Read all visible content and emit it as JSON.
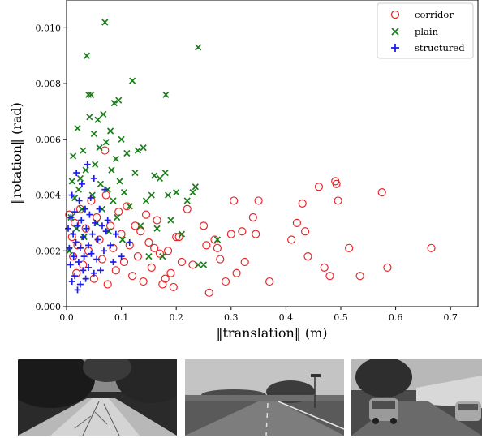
{
  "chart_data": {
    "type": "scatter",
    "title": "",
    "xlabel": "‖translation‖ (m)",
    "ylabel": "‖rotation‖ (rad)",
    "xlim": [
      0,
      0.75
    ],
    "ylim": [
      0,
      0.011
    ],
    "x_ticks": [
      "0.0",
      "0.1",
      "0.2",
      "0.3",
      "0.4",
      "0.5",
      "0.6",
      "0.7"
    ],
    "y_ticks": [
      "0.000",
      "0.002",
      "0.004",
      "0.006",
      "0.008",
      "0.010"
    ],
    "legend_position": "top-right",
    "grid": false,
    "series": [
      {
        "name": "corridor",
        "marker": "circle",
        "color": "#e8272a",
        "points": [
          [
            0.005,
            0.0033
          ],
          [
            0.01,
            0.0025
          ],
          [
            0.012,
            0.0018
          ],
          [
            0.015,
            0.003
          ],
          [
            0.018,
            0.0012
          ],
          [
            0.02,
            0.0022
          ],
          [
            0.025,
            0.0035
          ],
          [
            0.03,
            0.0015
          ],
          [
            0.035,
            0.0028
          ],
          [
            0.04,
            0.002
          ],
          [
            0.045,
            0.0038
          ],
          [
            0.05,
            0.001
          ],
          [
            0.055,
            0.0032
          ],
          [
            0.06,
            0.0024
          ],
          [
            0.065,
            0.0017
          ],
          [
            0.07,
            0.0056
          ],
          [
            0.072,
            0.004
          ],
          [
            0.075,
            0.0008
          ],
          [
            0.08,
            0.0029
          ],
          [
            0.085,
            0.0021
          ],
          [
            0.09,
            0.0013
          ],
          [
            0.095,
            0.0034
          ],
          [
            0.1,
            0.0026
          ],
          [
            0.105,
            0.0016
          ],
          [
            0.11,
            0.0036
          ],
          [
            0.115,
            0.0022
          ],
          [
            0.12,
            0.0011
          ],
          [
            0.125,
            0.0029
          ],
          [
            0.13,
            0.0018
          ],
          [
            0.135,
            0.0027
          ],
          [
            0.14,
            0.0009
          ],
          [
            0.145,
            0.0033
          ],
          [
            0.15,
            0.0023
          ],
          [
            0.155,
            0.0014
          ],
          [
            0.16,
            0.0021
          ],
          [
            0.165,
            0.0031
          ],
          [
            0.17,
            0.0019
          ],
          [
            0.175,
            0.0008
          ],
          [
            0.18,
            0.001
          ],
          [
            0.185,
            0.002
          ],
          [
            0.19,
            0.0012
          ],
          [
            0.195,
            0.0007
          ],
          [
            0.2,
            0.0025
          ],
          [
            0.205,
            0.0025
          ],
          [
            0.21,
            0.0016
          ],
          [
            0.22,
            0.0035
          ],
          [
            0.23,
            0.0015
          ],
          [
            0.25,
            0.0029
          ],
          [
            0.255,
            0.0022
          ],
          [
            0.26,
            0.0005
          ],
          [
            0.27,
            0.0024
          ],
          [
            0.275,
            0.0021
          ],
          [
            0.28,
            0.0017
          ],
          [
            0.29,
            0.0009
          ],
          [
            0.3,
            0.0026
          ],
          [
            0.305,
            0.0038
          ],
          [
            0.31,
            0.0012
          ],
          [
            0.32,
            0.0027
          ],
          [
            0.325,
            0.0016
          ],
          [
            0.34,
            0.0032
          ],
          [
            0.345,
            0.0026
          ],
          [
            0.35,
            0.0038
          ],
          [
            0.37,
            0.0009
          ],
          [
            0.41,
            0.0024
          ],
          [
            0.42,
            0.003
          ],
          [
            0.43,
            0.0037
          ],
          [
            0.435,
            0.0027
          ],
          [
            0.44,
            0.0018
          ],
          [
            0.46,
            0.0043
          ],
          [
            0.47,
            0.0014
          ],
          [
            0.48,
            0.0011
          ],
          [
            0.49,
            0.0045
          ],
          [
            0.492,
            0.0044
          ],
          [
            0.495,
            0.0038
          ],
          [
            0.515,
            0.0021
          ],
          [
            0.535,
            0.0011
          ],
          [
            0.575,
            0.0041
          ],
          [
            0.585,
            0.0014
          ],
          [
            0.665,
            0.0021
          ]
        ]
      },
      {
        "name": "plain",
        "marker": "x",
        "color": "#1a7f1a",
        "points": [
          [
            0.005,
            0.002
          ],
          [
            0.008,
            0.0032
          ],
          [
            0.01,
            0.0045
          ],
          [
            0.012,
            0.0054
          ],
          [
            0.015,
            0.0039
          ],
          [
            0.018,
            0.0028
          ],
          [
            0.02,
            0.0064
          ],
          [
            0.022,
            0.0042
          ],
          [
            0.025,
            0.0046
          ],
          [
            0.028,
            0.0035
          ],
          [
            0.03,
            0.0056
          ],
          [
            0.032,
            0.0025
          ],
          [
            0.035,
            0.0049
          ],
          [
            0.037,
            0.009
          ],
          [
            0.04,
            0.0076
          ],
          [
            0.042,
            0.0068
          ],
          [
            0.045,
            0.0076
          ],
          [
            0.047,
            0.004
          ],
          [
            0.05,
            0.0062
          ],
          [
            0.052,
            0.0051
          ],
          [
            0.055,
            0.003
          ],
          [
            0.057,
            0.0067
          ],
          [
            0.06,
            0.0057
          ],
          [
            0.062,
            0.0044
          ],
          [
            0.065,
            0.0035
          ],
          [
            0.067,
            0.0069
          ],
          [
            0.07,
            0.0102
          ],
          [
            0.072,
            0.0059
          ],
          [
            0.075,
            0.0042
          ],
          [
            0.077,
            0.0027
          ],
          [
            0.08,
            0.0063
          ],
          [
            0.082,
            0.0049
          ],
          [
            0.085,
            0.0038
          ],
          [
            0.087,
            0.0073
          ],
          [
            0.09,
            0.0053
          ],
          [
            0.092,
            0.0032
          ],
          [
            0.095,
            0.0074
          ],
          [
            0.097,
            0.0045
          ],
          [
            0.1,
            0.006
          ],
          [
            0.102,
            0.0024
          ],
          [
            0.105,
            0.0041
          ],
          [
            0.11,
            0.0055
          ],
          [
            0.115,
            0.0036
          ],
          [
            0.12,
            0.0081
          ],
          [
            0.125,
            0.0048
          ],
          [
            0.13,
            0.0056
          ],
          [
            0.135,
            0.0029
          ],
          [
            0.14,
            0.0057
          ],
          [
            0.145,
            0.0038
          ],
          [
            0.15,
            0.0018
          ],
          [
            0.155,
            0.004
          ],
          [
            0.16,
            0.0047
          ],
          [
            0.165,
            0.0028
          ],
          [
            0.17,
            0.0046
          ],
          [
            0.175,
            0.0018
          ],
          [
            0.18,
            0.0048
          ],
          [
            0.181,
            0.0076
          ],
          [
            0.185,
            0.004
          ],
          [
            0.19,
            0.0031
          ],
          [
            0.2,
            0.0041
          ],
          [
            0.21,
            0.0026
          ],
          [
            0.22,
            0.0038
          ],
          [
            0.23,
            0.0041
          ],
          [
            0.235,
            0.0043
          ],
          [
            0.24,
            0.0015
          ],
          [
            0.24,
            0.0093
          ],
          [
            0.25,
            0.0015
          ],
          [
            0.275,
            0.0024
          ]
        ]
      },
      {
        "name": "structured",
        "marker": "plus",
        "color": "#1c1cf0",
        "points": [
          [
            0.003,
            0.0028
          ],
          [
            0.005,
            0.0021
          ],
          [
            0.007,
            0.0015
          ],
          [
            0.008,
            0.0032
          ],
          [
            0.01,
            0.0009
          ],
          [
            0.01,
            0.004
          ],
          [
            0.012,
            0.0026
          ],
          [
            0.013,
            0.0018
          ],
          [
            0.015,
            0.0034
          ],
          [
            0.015,
            0.0011
          ],
          [
            0.017,
            0.0023
          ],
          [
            0.018,
            0.0048
          ],
          [
            0.02,
            0.0006
          ],
          [
            0.02,
            0.0029
          ],
          [
            0.022,
            0.0016
          ],
          [
            0.023,
            0.0038
          ],
          [
            0.025,
            0.0021
          ],
          [
            0.025,
            0.0008
          ],
          [
            0.027,
            0.0031
          ],
          [
            0.028,
            0.0044
          ],
          [
            0.03,
            0.0013
          ],
          [
            0.03,
            0.0025
          ],
          [
            0.032,
            0.0018
          ],
          [
            0.034,
            0.0035
          ],
          [
            0.035,
            0.001
          ],
          [
            0.036,
            0.0028
          ],
          [
            0.038,
            0.0051
          ],
          [
            0.04,
            0.0022
          ],
          [
            0.04,
            0.0014
          ],
          [
            0.042,
            0.0033
          ],
          [
            0.044,
            0.0039
          ],
          [
            0.045,
            0.0019
          ],
          [
            0.047,
            0.0026
          ],
          [
            0.05,
            0.0012
          ],
          [
            0.05,
            0.0046
          ],
          [
            0.052,
            0.003
          ],
          [
            0.055,
            0.0017
          ],
          [
            0.057,
            0.0024
          ],
          [
            0.06,
            0.0035
          ],
          [
            0.062,
            0.0013
          ],
          [
            0.065,
            0.0029
          ],
          [
            0.068,
            0.002
          ],
          [
            0.07,
            0.0042
          ],
          [
            0.072,
            0.0027
          ],
          [
            0.075,
            0.0031
          ],
          [
            0.08,
            0.0022
          ],
          [
            0.085,
            0.0016
          ],
          [
            0.09,
            0.0026
          ],
          [
            0.1,
            0.0018
          ],
          [
            0.115,
            0.0023
          ]
        ]
      }
    ]
  },
  "photos": [
    {
      "name": "corridor"
    },
    {
      "name": "plain"
    },
    {
      "name": "structured"
    }
  ]
}
